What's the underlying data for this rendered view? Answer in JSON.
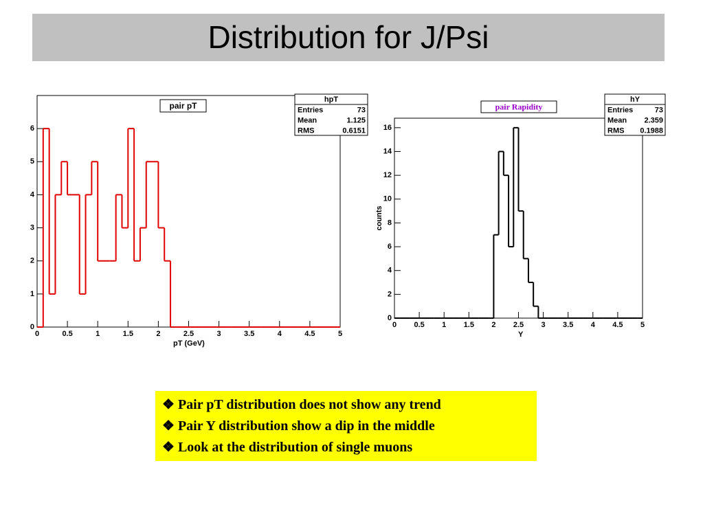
{
  "title": "Distribution for J/Psi",
  "chart_data": [
    {
      "type": "histogram",
      "title": "pair pT",
      "xlabel": "pT (GeV)",
      "color": "#e00000",
      "bins": [
        0,
        0.1,
        0.2,
        0.3,
        0.4,
        0.5,
        0.6,
        0.7,
        0.8,
        0.9,
        1,
        1.1,
        1.2,
        1.3,
        1.4,
        1.5,
        1.6,
        1.7,
        1.8,
        1.9,
        2,
        2.1,
        2.2,
        2.3,
        2.4,
        2.5,
        2.6,
        2.7,
        2.8,
        2.9,
        3,
        3.1,
        3.2,
        3.3,
        3.4,
        3.5,
        3.6,
        3.7,
        3.8,
        3.9,
        4,
        4.1,
        4.2,
        4.3,
        4.4,
        4.5,
        4.6,
        4.7,
        4.8,
        4.9,
        5
      ],
      "counts": [
        0,
        6,
        1,
        4,
        5,
        4,
        4,
        1,
        4,
        5,
        2,
        2,
        2,
        4,
        3,
        6,
        2,
        3,
        5,
        5,
        3,
        2,
        0,
        0,
        0,
        0,
        0,
        0,
        0,
        0,
        0,
        0,
        0,
        0,
        0,
        0,
        0,
        0,
        0,
        0,
        0,
        0,
        0,
        0,
        0,
        0,
        0,
        0,
        0,
        0
      ],
      "xlim": [
        0,
        5
      ],
      "ylim": [
        0,
        7
      ],
      "xticks": [
        0,
        0.5,
        1,
        1.5,
        2,
        2.5,
        3,
        3.5,
        4,
        4.5,
        5
      ],
      "yticks": [
        0,
        1,
        2,
        3,
        4,
        5,
        6
      ],
      "stats": {
        "name": "hpT",
        "labels": [
          "Entries",
          "Mean",
          "RMS"
        ],
        "values": [
          73,
          1.125,
          0.6151
        ]
      }
    },
    {
      "type": "histogram",
      "title": "pair Rapidity",
      "xlabel": "Y",
      "ylabel": "counts",
      "color": "#000000",
      "bins": [
        0,
        0.1,
        0.2,
        0.3,
        0.4,
        0.5,
        0.6,
        0.7,
        0.8,
        0.9,
        1,
        1.1,
        1.2,
        1.3,
        1.4,
        1.5,
        1.6,
        1.7,
        1.8,
        1.9,
        2,
        2.1,
        2.2,
        2.3,
        2.4,
        2.5,
        2.6,
        2.7,
        2.8,
        2.9,
        3,
        3.1,
        3.2,
        3.3,
        3.4,
        3.5,
        3.6,
        3.7,
        3.8,
        3.9,
        4,
        4.1,
        4.2,
        4.3,
        4.4,
        4.5,
        4.6,
        4.7,
        4.8,
        4.9,
        5
      ],
      "counts": [
        0,
        0,
        0,
        0,
        0,
        0,
        0,
        0,
        0,
        0,
        0,
        0,
        0,
        0,
        0,
        0,
        0,
        0,
        0,
        0,
        7,
        14,
        12,
        6,
        16,
        9,
        5,
        3,
        1,
        0,
        0,
        0,
        0,
        0,
        0,
        0,
        0,
        0,
        0,
        0,
        0,
        0,
        0,
        0,
        0,
        0,
        0,
        0,
        0,
        0
      ],
      "xlim": [
        0,
        5
      ],
      "ylim": [
        0,
        16.8
      ],
      "xticks": [
        0,
        0.5,
        1,
        1.5,
        2,
        2.5,
        3,
        3.5,
        4,
        4.5,
        5
      ],
      "yticks": [
        0,
        2,
        4,
        6,
        8,
        10,
        12,
        14,
        16
      ],
      "stats": {
        "name": "hY",
        "labels": [
          "Entries",
          "Mean",
          "RMS"
        ],
        "values": [
          73,
          2.359,
          0.1988
        ]
      }
    }
  ],
  "bullets": [
    "Pair pT distribution does not show any trend",
    "Pair Y distribution show a dip in the middle",
    "Look at the distribution of single muons"
  ]
}
